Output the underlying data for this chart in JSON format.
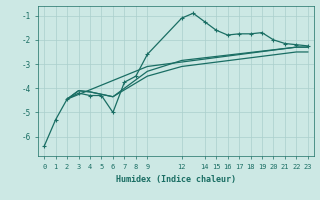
{
  "xlabel": "Humidex (Indice chaleur)",
  "bg_color": "#cce8e4",
  "grid_color": "#aacfcc",
  "line_color": "#1a6e64",
  "xlim": [
    -0.5,
    23.5
  ],
  "ylim": [
    -6.8,
    -0.6
  ],
  "yticks": [
    -6,
    -5,
    -4,
    -3,
    -2,
    -1
  ],
  "xtick_positions": [
    0,
    1,
    2,
    3,
    4,
    5,
    6,
    7,
    8,
    9,
    12,
    14,
    15,
    16,
    17,
    18,
    19,
    20,
    21,
    22,
    23
  ],
  "xtick_labels": [
    "0",
    "1",
    "2",
    "3",
    "4",
    "5",
    "6",
    "7",
    "8",
    "9",
    "12",
    "14",
    "15",
    "16",
    "17",
    "18",
    "19",
    "20",
    "21",
    "22",
    "23"
  ],
  "lines": [
    {
      "x": [
        0,
        1,
        2,
        3,
        4,
        5,
        6,
        7,
        8,
        9,
        12,
        13,
        14,
        15,
        16,
        17,
        18,
        19,
        20,
        21,
        22,
        23
      ],
      "y": [
        -6.4,
        -5.3,
        -4.45,
        -4.2,
        -4.3,
        -4.3,
        -5.0,
        -3.75,
        -3.5,
        -2.6,
        -1.1,
        -0.9,
        -1.25,
        -1.6,
        -1.8,
        -1.75,
        -1.75,
        -1.7,
        -2.0,
        -2.15,
        -2.2,
        -2.25
      ],
      "marker": true,
      "lw": 0.9
    },
    {
      "x": [
        2,
        3,
        4,
        5,
        6,
        9,
        12,
        22,
        23
      ],
      "y": [
        -4.45,
        -4.1,
        -4.15,
        -4.25,
        -4.35,
        -3.3,
        -2.85,
        -2.3,
        -2.3
      ],
      "marker": false,
      "lw": 0.9
    },
    {
      "x": [
        2,
        3,
        4,
        5,
        6,
        9,
        12,
        22,
        23
      ],
      "y": [
        -4.45,
        -4.1,
        -4.15,
        -4.25,
        -4.35,
        -3.5,
        -3.1,
        -2.5,
        -2.5
      ],
      "marker": false,
      "lw": 0.9
    },
    {
      "x": [
        2,
        9,
        22,
        23
      ],
      "y": [
        -4.45,
        -3.1,
        -2.3,
        -2.3
      ],
      "marker": false,
      "lw": 0.9
    }
  ]
}
